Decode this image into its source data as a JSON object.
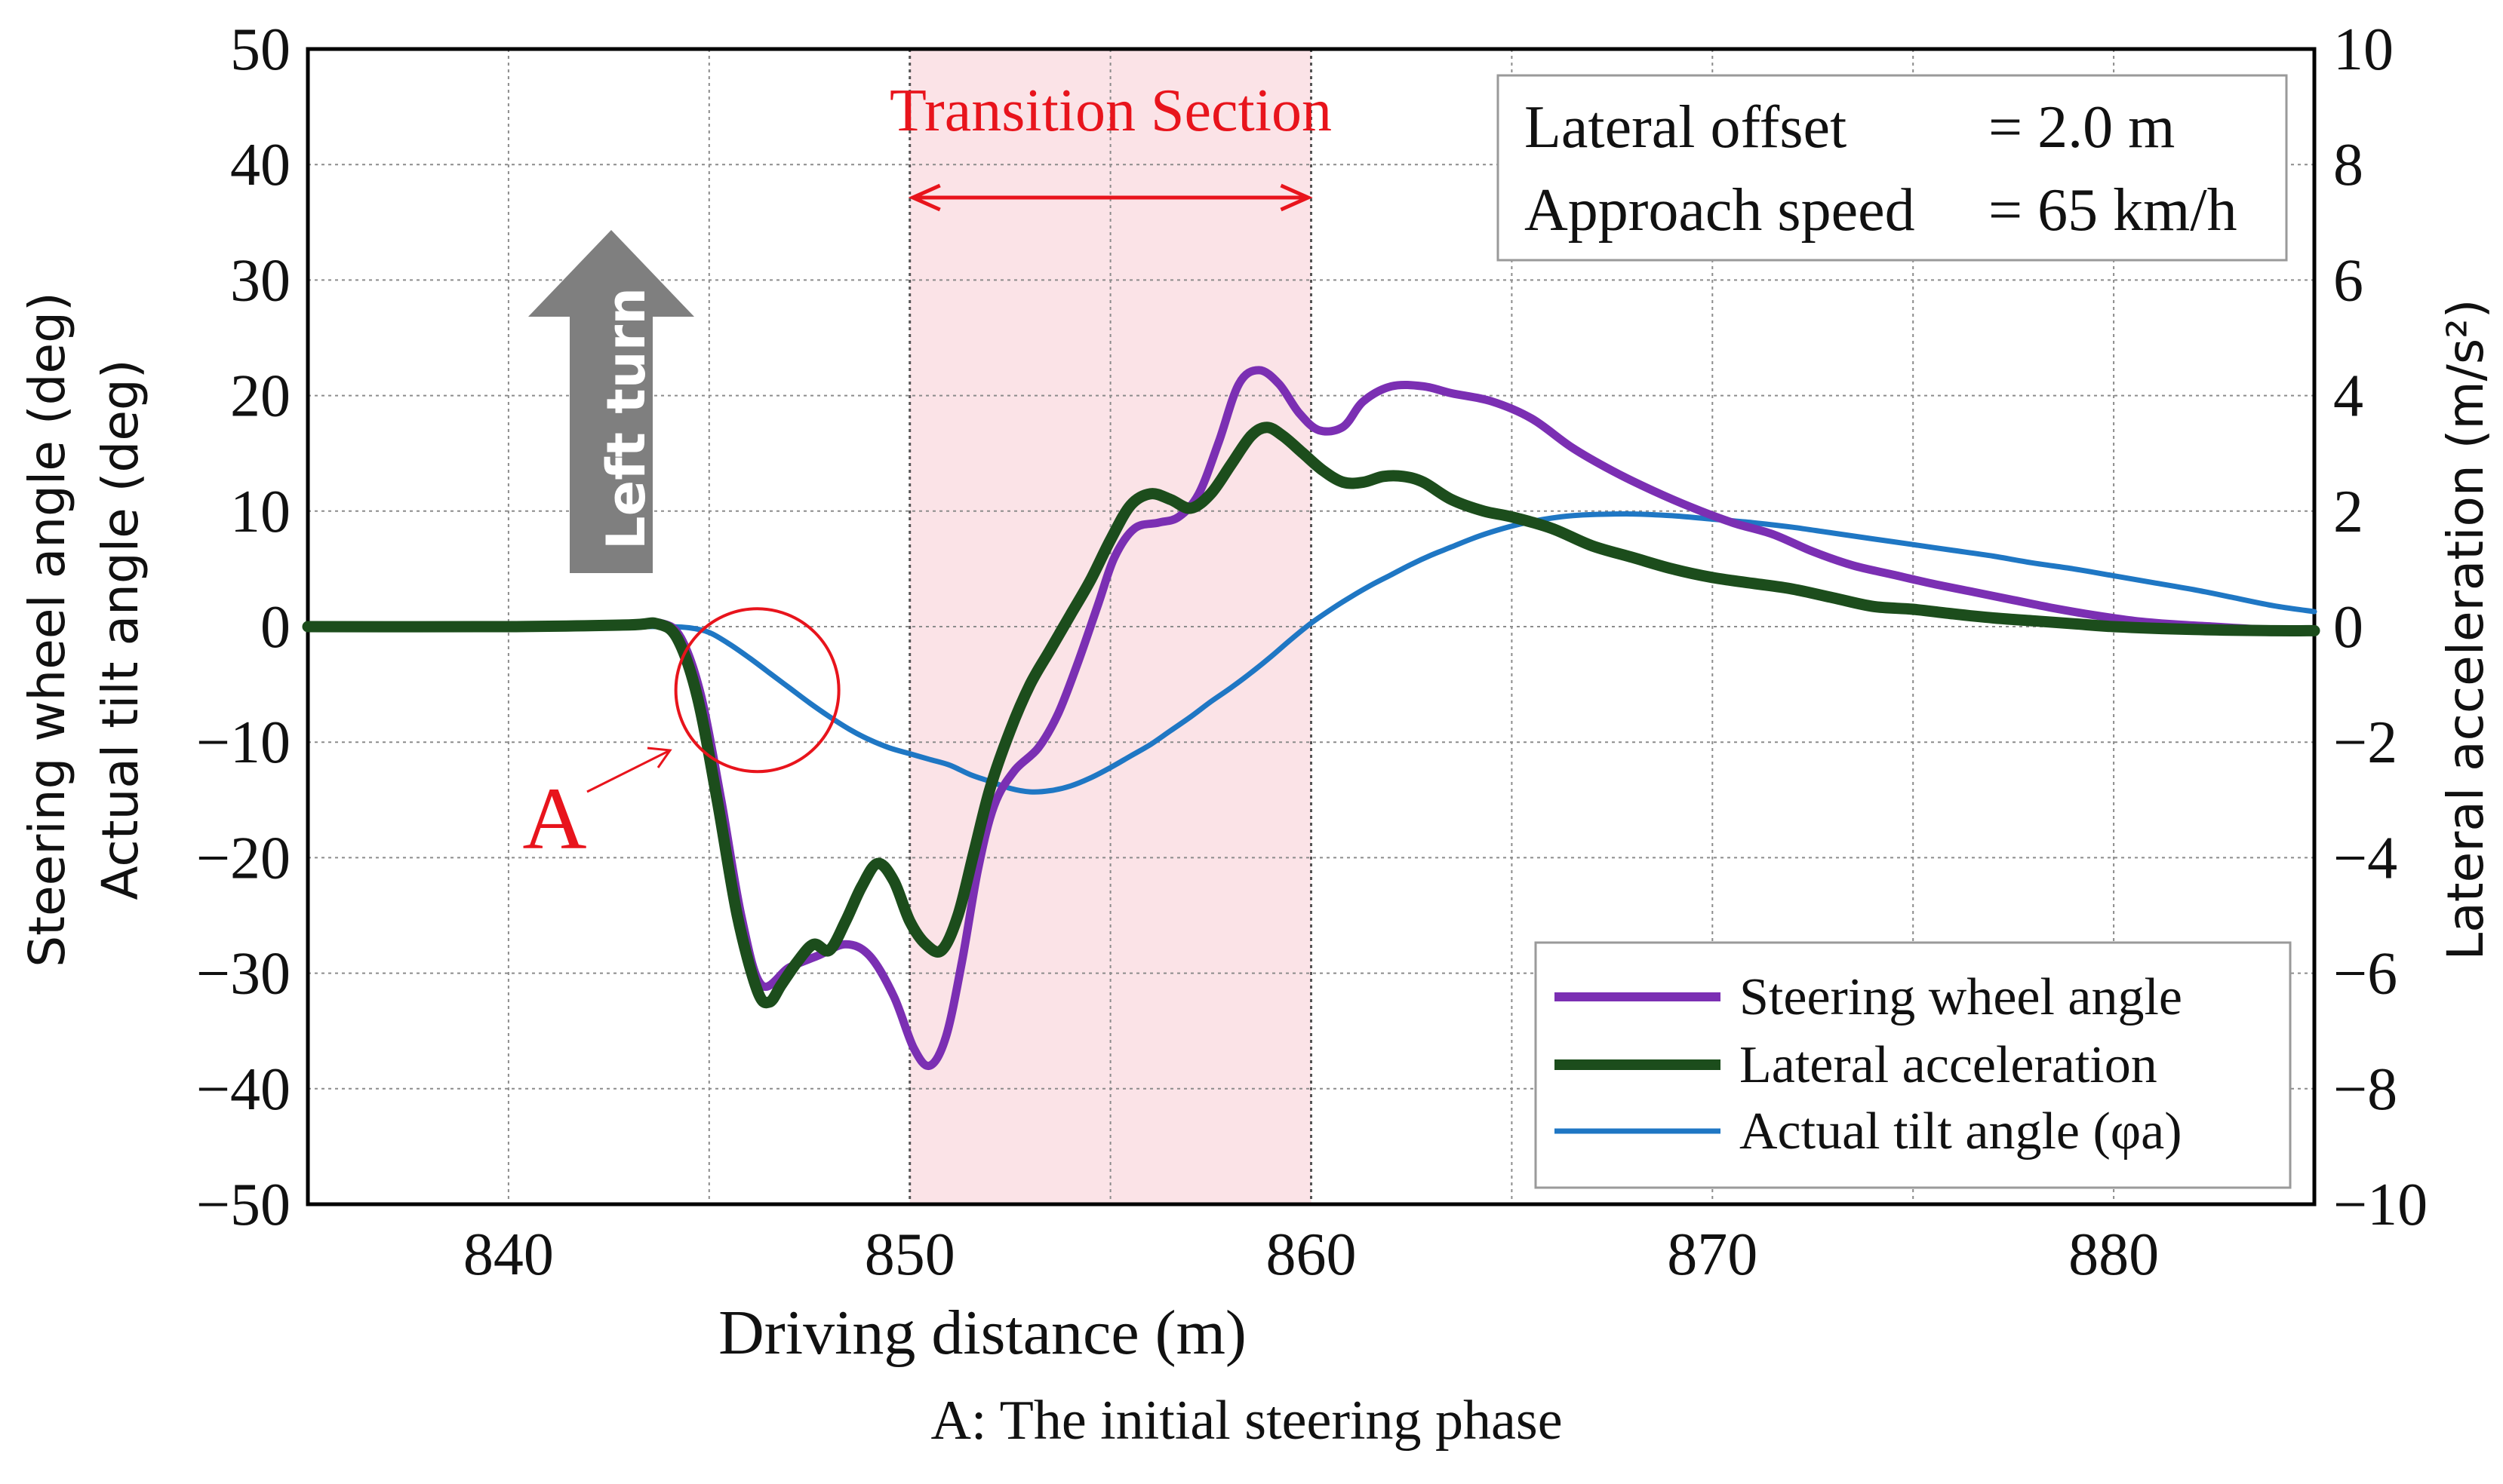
{
  "chart_data": {
    "type": "line",
    "x": {
      "label": "Driving distance (m)",
      "range": [
        835,
        885
      ],
      "ticks": [
        840,
        850,
        860,
        870,
        880
      ],
      "tick_labels": [
        "840",
        "850",
        "860",
        "870",
        "880"
      ]
    },
    "y_left": {
      "label_line1": "Steering wheel angle (deg)",
      "label_line2": "Actual tilt angle (deg)",
      "range": [
        -50,
        50
      ],
      "ticks": [
        -50,
        -40,
        -30,
        -20,
        -10,
        0,
        10,
        20,
        30,
        40,
        50
      ],
      "tick_labels": [
        "−50",
        "−40",
        "−30",
        "−20",
        "−10",
        "0",
        "10",
        "20",
        "30",
        "40",
        "50"
      ]
    },
    "y_right": {
      "label": "Lateral acceleration (m/s²)",
      "range": [
        -10,
        10
      ],
      "ticks": [
        -10,
        -8,
        -6,
        -4,
        -2,
        0,
        2,
        4,
        6,
        8,
        10
      ],
      "tick_labels": [
        "−10",
        "−8",
        "−6",
        "−4",
        "−2",
        "0",
        "2",
        "4",
        "6",
        "8",
        "10"
      ]
    },
    "grid": true,
    "transition_section": {
      "label": "Transition Section",
      "x_start": 850,
      "x_end": 860,
      "color": "#fbe3e7"
    },
    "info_box": {
      "line1_label": "Lateral offset",
      "line1_value": "= 2.0 m",
      "line2_label": "Approach speed",
      "line2_value": "= 65 km/h"
    },
    "arrow_label": "Left turn",
    "annotation": {
      "marker": "A",
      "center_x": 846.2,
      "center_y": -5.5,
      "caption": "A: The initial steering phase"
    },
    "series": [
      {
        "name": "Steering wheel angle",
        "axis": "left",
        "color": "#7b2fb3",
        "points": [
          [
            835,
            0
          ],
          [
            840,
            0
          ],
          [
            843,
            0.2
          ],
          [
            843.8,
            0.3
          ],
          [
            844.3,
            -1
          ],
          [
            844.8,
            -6
          ],
          [
            845.3,
            -15
          ],
          [
            845.8,
            -25
          ],
          [
            846.3,
            -31
          ],
          [
            847,
            -29.5
          ],
          [
            847.7,
            -28.5
          ],
          [
            848.4,
            -27.5
          ],
          [
            849,
            -28.5
          ],
          [
            849.6,
            -32
          ],
          [
            850.1,
            -36.5
          ],
          [
            850.5,
            -38
          ],
          [
            850.9,
            -35.5
          ],
          [
            851.3,
            -29
          ],
          [
            851.7,
            -21
          ],
          [
            852.1,
            -15.5
          ],
          [
            852.6,
            -12.5
          ],
          [
            853.2,
            -10.5
          ],
          [
            853.7,
            -7.5
          ],
          [
            854.2,
            -3
          ],
          [
            854.7,
            2
          ],
          [
            855.1,
            6
          ],
          [
            855.6,
            8.5
          ],
          [
            856.2,
            9
          ],
          [
            856.7,
            9.5
          ],
          [
            857.2,
            11.5
          ],
          [
            857.7,
            16
          ],
          [
            858.2,
            21
          ],
          [
            858.7,
            22.2
          ],
          [
            859.2,
            21
          ],
          [
            859.7,
            18.5
          ],
          [
            860.2,
            17
          ],
          [
            860.8,
            17.3
          ],
          [
            861.3,
            19.5
          ],
          [
            862,
            20.8
          ],
          [
            862.8,
            20.8
          ],
          [
            863.5,
            20.2
          ],
          [
            864.5,
            19.5
          ],
          [
            865.5,
            18
          ],
          [
            866.5,
            15.5
          ],
          [
            867.5,
            13.5
          ],
          [
            868.5,
            11.8
          ],
          [
            869.5,
            10.3
          ],
          [
            870.5,
            9
          ],
          [
            871.5,
            8
          ],
          [
            872.5,
            6.5
          ],
          [
            873.5,
            5.3
          ],
          [
            874.5,
            4.5
          ],
          [
            875.5,
            3.7
          ],
          [
            876.5,
            3
          ],
          [
            877.5,
            2.3
          ],
          [
            878.5,
            1.6
          ],
          [
            879.5,
            1
          ],
          [
            880.5,
            0.5
          ],
          [
            881.5,
            0.2
          ],
          [
            882.5,
            0
          ],
          [
            883.5,
            -0.2
          ],
          [
            884.5,
            -0.3
          ],
          [
            885,
            -0.4
          ]
        ]
      },
      {
        "name": "Lateral acceleration",
        "axis": "right",
        "color": "#1c4d1c",
        "points": [
          [
            835,
            0
          ],
          [
            840,
            0
          ],
          [
            843,
            0.03
          ],
          [
            843.7,
            0.05
          ],
          [
            844.2,
            -0.2
          ],
          [
            844.7,
            -1.2
          ],
          [
            845.2,
            -3
          ],
          [
            845.7,
            -5
          ],
          [
            846.2,
            -6.3
          ],
          [
            846.5,
            -6.5
          ],
          [
            846.8,
            -6.2
          ],
          [
            847.2,
            -5.8
          ],
          [
            847.6,
            -5.5
          ],
          [
            848,
            -5.6
          ],
          [
            848.4,
            -5.1
          ],
          [
            848.8,
            -4.5
          ],
          [
            849.2,
            -4.1
          ],
          [
            849.6,
            -4.4
          ],
          [
            850,
            -5.1
          ],
          [
            850.4,
            -5.5
          ],
          [
            850.8,
            -5.6
          ],
          [
            851.2,
            -5
          ],
          [
            851.6,
            -3.9
          ],
          [
            852,
            -2.8
          ],
          [
            852.5,
            -1.8
          ],
          [
            853,
            -1
          ],
          [
            853.5,
            -0.4
          ],
          [
            854,
            0.2
          ],
          [
            854.5,
            0.8
          ],
          [
            855,
            1.5
          ],
          [
            855.5,
            2.1
          ],
          [
            856,
            2.3
          ],
          [
            856.5,
            2.2
          ],
          [
            857,
            2.05
          ],
          [
            857.5,
            2.3
          ],
          [
            858,
            2.8
          ],
          [
            858.5,
            3.3
          ],
          [
            858.9,
            3.45
          ],
          [
            859.3,
            3.3
          ],
          [
            859.8,
            3
          ],
          [
            860.3,
            2.7
          ],
          [
            860.8,
            2.5
          ],
          [
            861.3,
            2.5
          ],
          [
            861.8,
            2.6
          ],
          [
            862.3,
            2.6
          ],
          [
            862.8,
            2.5
          ],
          [
            863.5,
            2.2
          ],
          [
            864.3,
            2
          ],
          [
            865,
            1.9
          ],
          [
            866,
            1.7
          ],
          [
            867,
            1.4
          ],
          [
            868,
            1.2
          ],
          [
            869,
            1
          ],
          [
            870,
            0.85
          ],
          [
            871,
            0.75
          ],
          [
            872,
            0.65
          ],
          [
            873,
            0.5
          ],
          [
            874,
            0.35
          ],
          [
            875,
            0.3
          ],
          [
            876,
            0.22
          ],
          [
            877,
            0.15
          ],
          [
            878,
            0.1
          ],
          [
            879,
            0.05
          ],
          [
            880,
            0
          ],
          [
            882,
            -0.05
          ],
          [
            884,
            -0.07
          ],
          [
            885,
            -0.07
          ]
        ]
      },
      {
        "name": "Actual tilt angle (φa)",
        "axis": "left",
        "color": "#1f77c4",
        "points": [
          [
            835,
            0
          ],
          [
            840,
            0
          ],
          [
            843,
            0
          ],
          [
            844,
            0
          ],
          [
            844.5,
            -0.1
          ],
          [
            845,
            -0.5
          ],
          [
            845.5,
            -1.5
          ],
          [
            846,
            -2.7
          ],
          [
            846.5,
            -4
          ],
          [
            847,
            -5.3
          ],
          [
            847.5,
            -6.6
          ],
          [
            848,
            -7.8
          ],
          [
            848.5,
            -8.9
          ],
          [
            849,
            -9.8
          ],
          [
            849.5,
            -10.5
          ],
          [
            850,
            -11
          ],
          [
            850.5,
            -11.5
          ],
          [
            851,
            -12
          ],
          [
            851.5,
            -12.8
          ],
          [
            852,
            -13.4
          ],
          [
            852.5,
            -14
          ],
          [
            853,
            -14.3
          ],
          [
            853.5,
            -14.2
          ],
          [
            854,
            -13.8
          ],
          [
            854.5,
            -13.1
          ],
          [
            855,
            -12.2
          ],
          [
            855.5,
            -11.2
          ],
          [
            856,
            -10.2
          ],
          [
            856.5,
            -9
          ],
          [
            857,
            -7.8
          ],
          [
            857.5,
            -6.5
          ],
          [
            858,
            -5.3
          ],
          [
            858.5,
            -4
          ],
          [
            859,
            -2.6
          ],
          [
            859.5,
            -1.1
          ],
          [
            860,
            0.3
          ],
          [
            860.5,
            1.5
          ],
          [
            861,
            2.6
          ],
          [
            861.5,
            3.6
          ],
          [
            862,
            4.5
          ],
          [
            862.5,
            5.4
          ],
          [
            863,
            6.2
          ],
          [
            863.5,
            6.9
          ],
          [
            864,
            7.6
          ],
          [
            864.5,
            8.2
          ],
          [
            865,
            8.7
          ],
          [
            865.5,
            9.1
          ],
          [
            866,
            9.4
          ],
          [
            866.5,
            9.6
          ],
          [
            867,
            9.7
          ],
          [
            868,
            9.75
          ],
          [
            869,
            9.6
          ],
          [
            870,
            9.3
          ],
          [
            871,
            9
          ],
          [
            872,
            8.6
          ],
          [
            873,
            8.1
          ],
          [
            874,
            7.6
          ],
          [
            875,
            7.1
          ],
          [
            876,
            6.6
          ],
          [
            877,
            6.1
          ],
          [
            878,
            5.5
          ],
          [
            879,
            5
          ],
          [
            880,
            4.4
          ],
          [
            881,
            3.8
          ],
          [
            882,
            3.2
          ],
          [
            883,
            2.5
          ],
          [
            884,
            1.8
          ],
          [
            885,
            1.3
          ]
        ]
      }
    ]
  }
}
